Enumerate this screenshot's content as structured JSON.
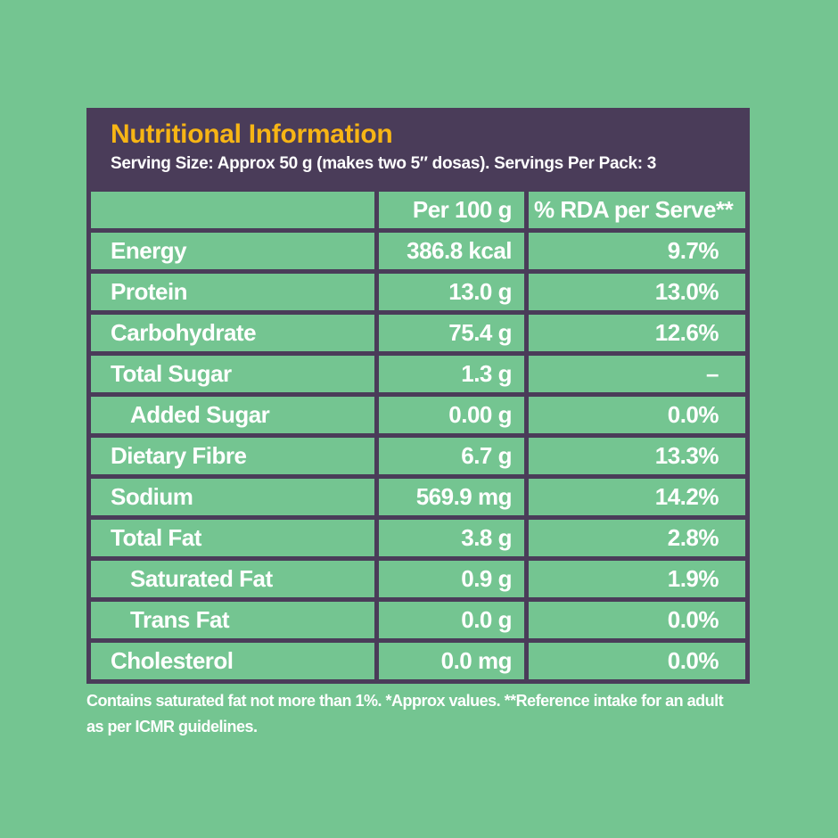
{
  "colors": {
    "background_green": "#74C591",
    "panel_purple": "#4A3C59",
    "title_yellow": "#F7B515",
    "text_white": "#FFFFFF"
  },
  "panel": {
    "title": "Nutritional Information",
    "serving_line": "Serving Size: Approx 50 g (makes two 5″ dosas). Servings Per Pack: 3"
  },
  "table": {
    "columns": [
      "",
      "Per 100 g",
      "% RDA per Serve**"
    ],
    "rows": [
      {
        "label": "Energy",
        "per100": "386.8 kcal",
        "rda": "9.7%",
        "indent": false
      },
      {
        "label": "Protein",
        "per100": "13.0 g",
        "rda": "13.0%",
        "indent": false
      },
      {
        "label": "Carbohydrate",
        "per100": "75.4 g",
        "rda": "12.6%",
        "indent": false
      },
      {
        "label": "Total Sugar",
        "per100": "1.3 g",
        "rda": "–",
        "indent": false
      },
      {
        "label": "Added Sugar",
        "per100": "0.00 g",
        "rda": "0.0%",
        "indent": true
      },
      {
        "label": "Dietary Fibre",
        "per100": "6.7 g",
        "rda": "13.3%",
        "indent": false
      },
      {
        "label": "Sodium",
        "per100": "569.9 mg",
        "rda": "14.2%",
        "indent": false
      },
      {
        "label": "Total Fat",
        "per100": "3.8 g",
        "rda": "2.8%",
        "indent": false
      },
      {
        "label": "Saturated Fat",
        "per100": "0.9 g",
        "rda": "1.9%",
        "indent": true
      },
      {
        "label": "Trans Fat",
        "per100": "0.0 g",
        "rda": "0.0%",
        "indent": true
      },
      {
        "label": "Cholesterol",
        "per100": "0.0 mg",
        "rda": "0.0%",
        "indent": false
      }
    ]
  },
  "footnote": {
    "line1": "Contains saturated fat not more than 1%. *Approx values. **Reference intake for an adult",
    "line2": "as per ICMR guidelines."
  }
}
